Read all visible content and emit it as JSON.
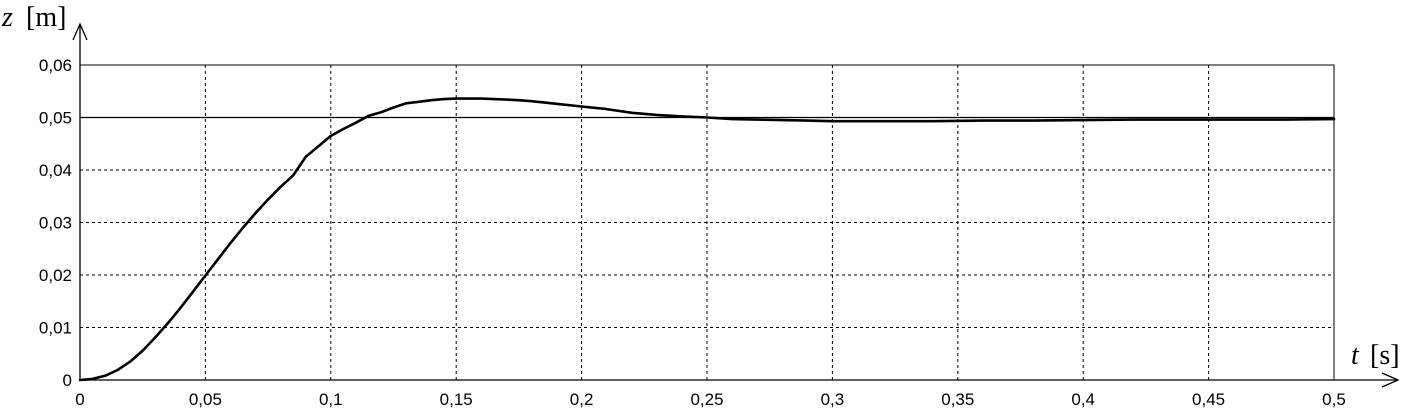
{
  "chart_data": {
    "type": "line",
    "title": "",
    "xlabel": {
      "variable": "t",
      "unit": "[s]"
    },
    "ylabel": {
      "variable": "z",
      "unit": "[m]"
    },
    "xlim": [
      0,
      0.5
    ],
    "ylim": [
      0,
      0.06
    ],
    "x_ticks": [
      0,
      0.05,
      0.1,
      0.15,
      0.2,
      0.25,
      0.3,
      0.35,
      0.4,
      0.45,
      0.5
    ],
    "x_tick_labels": [
      "0",
      "0,05",
      "0,1",
      "0,15",
      "0,2",
      "0,25",
      "0,3",
      "0,35",
      "0,4",
      "0,45",
      "0,5"
    ],
    "y_ticks": [
      0,
      0.01,
      0.02,
      0.03,
      0.04,
      0.05,
      0.06
    ],
    "y_tick_labels": [
      "0",
      "0,01",
      "0,02",
      "0,03",
      "0,04",
      "0,05",
      "0,06"
    ],
    "grid": true,
    "legend": "none",
    "reference_line": {
      "y": 0.05
    },
    "series": [
      {
        "color": "#000000",
        "x": [
          0,
          0.005,
          0.01,
          0.015,
          0.02,
          0.025,
          0.03,
          0.035,
          0.04,
          0.045,
          0.05,
          0.055,
          0.06,
          0.065,
          0.07,
          0.075,
          0.08,
          0.085,
          0.09,
          0.095,
          0.1,
          0.105,
          0.11,
          0.115,
          0.12,
          0.125,
          0.13,
          0.135,
          0.14,
          0.145,
          0.15,
          0.155,
          0.16,
          0.165,
          0.17,
          0.175,
          0.18,
          0.19,
          0.2,
          0.21,
          0.22,
          0.23,
          0.24,
          0.25,
          0.26,
          0.27,
          0.28,
          0.29,
          0.3,
          0.32,
          0.34,
          0.36,
          0.38,
          0.4,
          0.42,
          0.44,
          0.46,
          0.48,
          0.5
        ],
        "y": [
          0,
          0.0002,
          0.0008,
          0.0019,
          0.0035,
          0.0056,
          0.0081,
          0.0108,
          0.0137,
          0.0168,
          0.0199,
          0.023,
          0.0261,
          0.029,
          0.0318,
          0.0344,
          0.0368,
          0.039,
          0.0425,
          0.0445,
          0.0465,
          0.0478,
          0.049,
          0.0503,
          0.051,
          0.0519,
          0.0527,
          0.053,
          0.0533,
          0.0535,
          0.0536,
          0.0536,
          0.0536,
          0.0535,
          0.0534,
          0.0533,
          0.0531,
          0.0526,
          0.0521,
          0.0516,
          0.0509,
          0.0505,
          0.0502,
          0.05,
          0.0497,
          0.0496,
          0.0495,
          0.0494,
          0.0493,
          0.0493,
          0.0493,
          0.0494,
          0.0494,
          0.0495,
          0.0496,
          0.0496,
          0.0496,
          0.0496,
          0.0497
        ]
      }
    ]
  }
}
